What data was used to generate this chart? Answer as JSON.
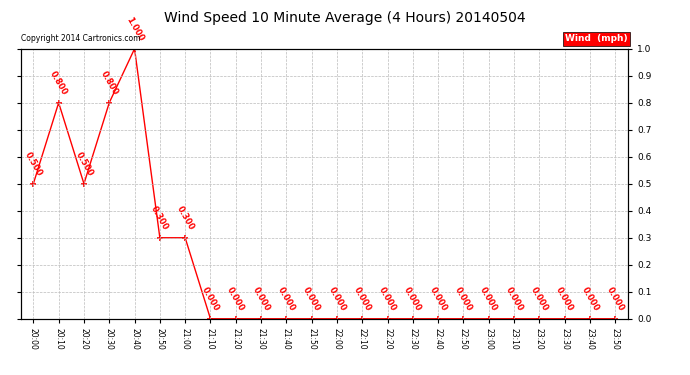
{
  "title": "Wind Speed 10 Minute Average (4 Hours) 20140504",
  "copyright": "Copyright 2014 Cartronics.com",
  "legend_label": "Wind  (mph)",
  "x_labels": [
    "20:00",
    "20:10",
    "20:20",
    "20:30",
    "20:40",
    "20:50",
    "21:00",
    "21:10",
    "21:20",
    "21:30",
    "21:40",
    "21:50",
    "22:00",
    "22:10",
    "22:20",
    "22:30",
    "22:40",
    "22:50",
    "23:00",
    "23:10",
    "23:20",
    "23:30",
    "23:40",
    "23:50"
  ],
  "y_values": [
    0.5,
    0.8,
    0.5,
    0.8,
    1.0,
    0.3,
    0.3,
    0.0,
    0.0,
    0.0,
    0.0,
    0.0,
    0.0,
    0.0,
    0.0,
    0.0,
    0.0,
    0.0,
    0.0,
    0.0,
    0.0,
    0.0,
    0.0,
    0.0
  ],
  "line_color": "#ff0000",
  "marker": "+",
  "marker_size": 5,
  "marker_linewidth": 1.2,
  "background_color": "#ffffff",
  "grid_color": "#bbbbbb",
  "ylim": [
    0.0,
    1.0
  ],
  "yticks": [
    0.0,
    0.1,
    0.2,
    0.3,
    0.4,
    0.5,
    0.6,
    0.7,
    0.8,
    0.9,
    1.0
  ],
  "title_fontsize": 10,
  "xtick_fontsize": 5.5,
  "ytick_fontsize": 6.5,
  "copyright_fontsize": 5.5,
  "legend_fontsize": 6.5,
  "annotation_fontsize": 6,
  "legend_color": "#ff0000",
  "legend_text_color": "#ffffff",
  "annotation_color": "#ff0000",
  "annotation_rotation": -60
}
